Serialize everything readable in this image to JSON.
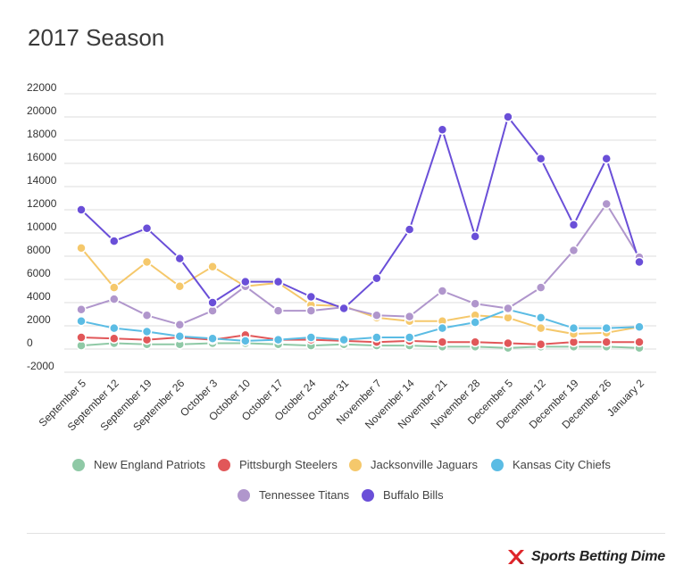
{
  "chart_data": {
    "type": "line",
    "title": "2017 Season",
    "xlabel": "",
    "ylabel": "",
    "ylim": [
      -2000,
      22000
    ],
    "yticks": [
      22000,
      20000,
      18000,
      16000,
      14000,
      12000,
      10000,
      8000,
      6000,
      4000,
      2000,
      0,
      -2000
    ],
    "grid": true,
    "legend_position": "bottom",
    "categories": [
      "September 5",
      "September 12",
      "September 19",
      "September 26",
      "October 3",
      "October 10",
      "October 17",
      "October 24",
      "October 31",
      "November 7",
      "November 14",
      "November 21",
      "November 28",
      "December 5",
      "December 12",
      "December 19",
      "December 26",
      "January 2"
    ],
    "series": [
      {
        "name": "New England Patriots",
        "color": "#8fc9a6",
        "values": [
          300,
          500,
          400,
          400,
          500,
          500,
          400,
          300,
          400,
          300,
          300,
          200,
          200,
          100,
          200,
          200,
          200,
          100
        ]
      },
      {
        "name": "Pittsburgh Steelers",
        "color": "#e15759",
        "values": [
          1000,
          900,
          800,
          1000,
          800,
          1200,
          800,
          800,
          700,
          600,
          700,
          600,
          600,
          500,
          400,
          600,
          600,
          600
        ]
      },
      {
        "name": "Jacksonville Jaguars",
        "color": "#f5c86b",
        "values": [
          8700,
          5300,
          7500,
          5400,
          7100,
          5400,
          5700,
          3800,
          3700,
          2700,
          2400,
          2400,
          2900,
          2700,
          1800,
          1300,
          1400,
          1900
        ]
      },
      {
        "name": "Kansas City Chiefs",
        "color": "#5bbce4",
        "values": [
          2400,
          1800,
          1500,
          1100,
          900,
          700,
          800,
          1000,
          800,
          1000,
          1000,
          1800,
          2300,
          3400,
          2700,
          1800,
          1800,
          1900
        ]
      },
      {
        "name": "Tennessee Titans",
        "color": "#b096cc",
        "values": [
          3400,
          4300,
          2900,
          2100,
          3300,
          5400,
          3300,
          3300,
          3600,
          2900,
          2800,
          5000,
          3900,
          3500,
          5300,
          8500,
          12500,
          7900
        ]
      },
      {
        "name": "Buffalo Bills",
        "color": "#6a4fd8",
        "values": [
          12000,
          9300,
          10400,
          7800,
          4000,
          5800,
          5800,
          4500,
          3500,
          6100,
          10300,
          18900,
          9700,
          20000,
          16400,
          10700,
          16400,
          7500
        ]
      }
    ]
  },
  "brand": {
    "name": "Sports Betting Dime",
    "icon": "sbd-logo-icon"
  }
}
